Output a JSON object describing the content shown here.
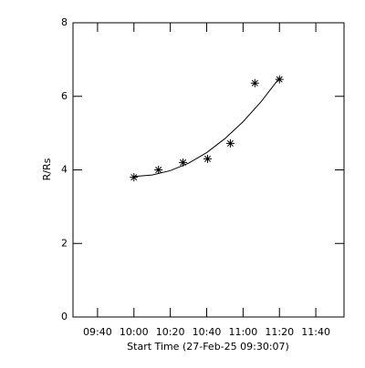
{
  "chart_data": {
    "type": "scatter",
    "x_label": "Start Time (27-Feb-25 09:30:07)",
    "y_label": "R/Rs",
    "series": [
      {
        "type": "scatter",
        "color": "#000000",
        "x": [
          600,
          613.5,
          627,
          640.5,
          653,
          666.5,
          680
        ],
        "values": [
          3.8,
          4.0,
          4.2,
          4.3,
          4.72,
          6.36,
          6.46
        ]
      },
      {
        "type": "line",
        "color": "#000000",
        "x": [
          600,
          610,
          620,
          630,
          640,
          650,
          660,
          670,
          680
        ],
        "values": [
          3.82,
          3.86,
          3.98,
          4.18,
          4.47,
          4.85,
          5.31,
          5.86,
          6.5
        ]
      }
    ],
    "xlim": [
      566.5,
      715.5
    ],
    "xticks": [
      {
        "value": 580,
        "label": "09:40"
      },
      {
        "value": 600,
        "label": "10:00"
      },
      {
        "value": 620,
        "label": "10:20"
      },
      {
        "value": 640,
        "label": "10:40"
      },
      {
        "value": 660,
        "label": "11:00"
      },
      {
        "value": 680,
        "label": "11:20"
      },
      {
        "value": 700,
        "label": "11:40"
      }
    ],
    "ylim": [
      0,
      8
    ],
    "yticks": [
      0,
      2,
      4,
      6,
      8
    ]
  }
}
